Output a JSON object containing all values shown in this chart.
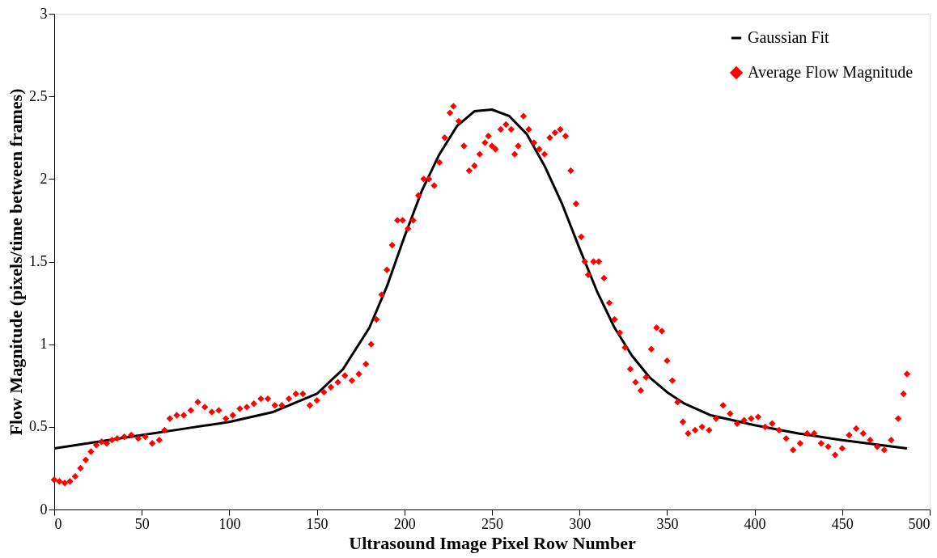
{
  "chart_data": {
    "type": "scatter",
    "xlabel": "Ultrasound Image Pixel Row Number",
    "ylabel": "Flow Magnitude (pixels/time between frames)",
    "xlim": [
      0,
      500
    ],
    "xticks": [
      0,
      50,
      100,
      150,
      200,
      250,
      300,
      350,
      400,
      450,
      500
    ],
    "ylim": [
      0,
      3
    ],
    "yticks": [
      0,
      0.5,
      1,
      1.5,
      2,
      2.5,
      3
    ],
    "grid": false,
    "legend": "top right",
    "series": [
      {
        "name": "Gaussian Fit",
        "type": "line",
        "color": "#000000",
        "line_style": "solid",
        "marker": "none",
        "x": [
          0,
          25,
          50,
          75,
          100,
          125,
          150,
          165,
          180,
          190,
          200,
          210,
          220,
          230,
          240,
          250,
          260,
          270,
          280,
          290,
          300,
          310,
          320,
          330,
          340,
          350,
          360,
          375,
          400,
          425,
          450,
          487
        ],
        "values": [
          0.37,
          0.41,
          0.45,
          0.49,
          0.53,
          0.59,
          0.7,
          0.85,
          1.1,
          1.35,
          1.65,
          1.93,
          2.15,
          2.32,
          2.41,
          2.42,
          2.38,
          2.27,
          2.08,
          1.85,
          1.58,
          1.32,
          1.1,
          0.93,
          0.8,
          0.71,
          0.64,
          0.57,
          0.51,
          0.46,
          0.42,
          0.37
        ]
      },
      {
        "name": "Average Flow Magnitude",
        "color": "#ff0000",
        "marker": "diamond",
        "x": [
          0,
          3,
          6,
          9,
          12,
          15,
          18,
          21,
          24,
          27,
          30,
          33,
          36,
          40,
          44,
          48,
          52,
          56,
          60,
          63,
          66,
          70,
          74,
          78,
          82,
          86,
          90,
          94,
          98,
          102,
          106,
          110,
          114,
          118,
          122,
          126,
          130,
          134,
          138,
          142,
          146,
          150,
          154,
          158,
          162,
          166,
          170,
          174,
          178,
          181,
          184,
          187,
          190,
          193,
          196,
          199,
          202,
          205,
          208,
          211,
          214,
          217,
          220,
          223,
          226,
          228,
          231,
          234,
          237,
          240,
          243,
          246,
          248,
          250,
          252,
          255,
          258,
          261,
          263,
          265,
          268,
          271,
          274,
          277,
          280,
          283,
          286,
          289,
          292,
          295,
          298,
          301,
          303,
          305,
          308,
          311,
          314,
          317,
          320,
          323,
          326,
          329,
          332,
          335,
          338,
          341,
          344,
          347,
          350,
          353,
          356,
          359,
          362,
          366,
          370,
          374,
          378,
          382,
          386,
          390,
          394,
          398,
          402,
          406,
          410,
          414,
          418,
          422,
          426,
          430,
          434,
          438,
          442,
          446,
          450,
          454,
          458,
          462,
          466,
          470,
          474,
          478,
          482,
          485,
          487
        ],
        "values": [
          0.18,
          0.17,
          0.16,
          0.17,
          0.2,
          0.25,
          0.3,
          0.35,
          0.39,
          0.41,
          0.4,
          0.42,
          0.43,
          0.44,
          0.45,
          0.43,
          0.44,
          0.4,
          0.42,
          0.48,
          0.55,
          0.57,
          0.57,
          0.6,
          0.65,
          0.62,
          0.59,
          0.6,
          0.55,
          0.57,
          0.61,
          0.62,
          0.64,
          0.67,
          0.67,
          0.63,
          0.63,
          0.67,
          0.7,
          0.7,
          0.63,
          0.66,
          0.71,
          0.74,
          0.77,
          0.81,
          0.78,
          0.82,
          0.88,
          1.0,
          1.15,
          1.3,
          1.45,
          1.6,
          1.75,
          1.75,
          1.7,
          1.75,
          1.9,
          2.0,
          2.0,
          1.96,
          2.1,
          2.25,
          2.4,
          2.44,
          2.35,
          2.2,
          2.05,
          2.08,
          2.15,
          2.22,
          2.26,
          2.2,
          2.18,
          2.3,
          2.33,
          2.3,
          2.15,
          2.2,
          2.38,
          2.3,
          2.22,
          2.18,
          2.15,
          2.25,
          2.28,
          2.3,
          2.26,
          2.05,
          1.85,
          1.65,
          1.5,
          1.42,
          1.5,
          1.5,
          1.4,
          1.25,
          1.15,
          1.07,
          0.98,
          0.85,
          0.77,
          0.72,
          0.8,
          0.97,
          1.1,
          1.08,
          0.9,
          0.78,
          0.65,
          0.53,
          0.46,
          0.48,
          0.5,
          0.48,
          0.55,
          0.63,
          0.58,
          0.52,
          0.54,
          0.55,
          0.56,
          0.5,
          0.52,
          0.48,
          0.43,
          0.36,
          0.4,
          0.46,
          0.46,
          0.4,
          0.38,
          0.33,
          0.37,
          0.45,
          0.49,
          0.46,
          0.42,
          0.38,
          0.36,
          0.42,
          0.55,
          0.7,
          0.82
        ]
      }
    ]
  }
}
